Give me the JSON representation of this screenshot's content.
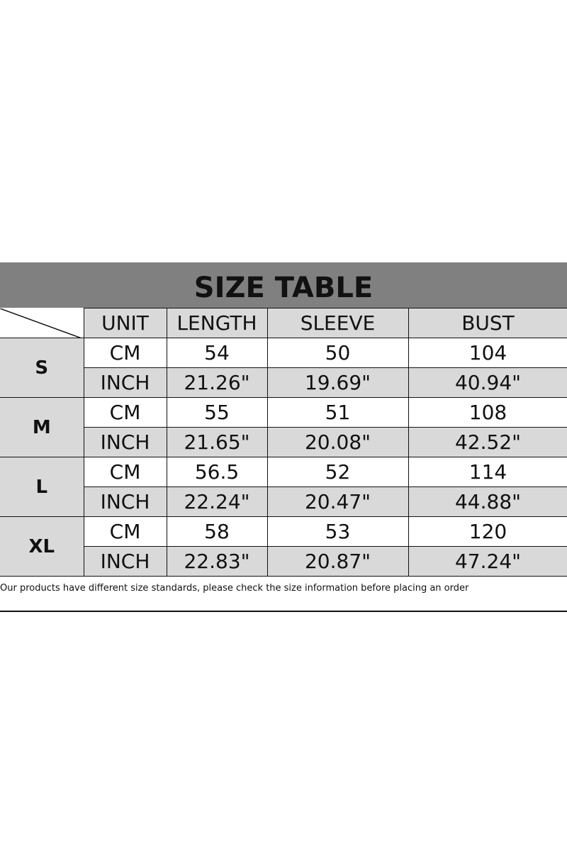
{
  "title": "SIZE TABLE",
  "headers": [
    "UNIT",
    "LENGTH",
    "SLEEVE",
    "BUST"
  ],
  "rows": [
    {
      "size": "S",
      "cm": {
        "unit": "CM",
        "length": "54",
        "sleeve": "50",
        "bust": "104"
      },
      "inch": {
        "unit": "INCH",
        "length": "21.26\"",
        "sleeve": "19.69\"",
        "bust": "40.94\""
      }
    },
    {
      "size": "M",
      "cm": {
        "unit": "CM",
        "length": "55",
        "sleeve": "51",
        "bust": "108"
      },
      "inch": {
        "unit": "INCH",
        "length": "21.65\"",
        "sleeve": "20.08\"",
        "bust": "42.52\""
      }
    },
    {
      "size": "L",
      "cm": {
        "unit": "CM",
        "length": "56.5",
        "sleeve": "52",
        "bust": "114"
      },
      "inch": {
        "unit": "INCH",
        "length": "22.24\"",
        "sleeve": "20.47\"",
        "bust": "44.88\""
      }
    },
    {
      "size": "XL",
      "cm": {
        "unit": "CM",
        "length": "58",
        "sleeve": "53",
        "bust": "120"
      },
      "inch": {
        "unit": "INCH",
        "length": "22.83\"",
        "sleeve": "20.87\"",
        "bust": "47.24\""
      }
    }
  ],
  "note": "Our products have different size standards, please check the size information before placing an order",
  "colors": {
    "title_bar": "#808080",
    "cell_gray": "#d9d9d9"
  }
}
